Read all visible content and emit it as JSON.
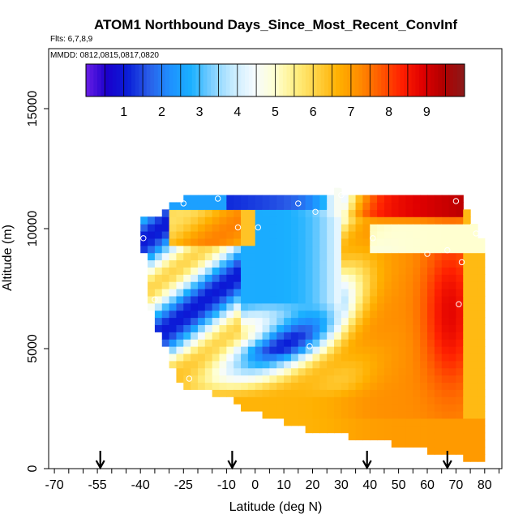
{
  "chart_data": {
    "type": "heatmap",
    "title": "ATOM1 Northbound Days_Since_Most_Recent_ConvInf",
    "subtitle_flights": "Flts: 6,7,8,9",
    "subtitle_dates": "MMDD: 0812,0815,0817,0820",
    "xlabel": "Latitude (deg N)",
    "ylabel": "Altitude (m)",
    "xlim": [
      -72,
      86
    ],
    "ylim": [
      0,
      17500
    ],
    "x_tick_labels": [
      {
        "value": -70,
        "label": "-70"
      },
      {
        "value": -55,
        "label": "-55"
      },
      {
        "value": -40,
        "label": "-40"
      },
      {
        "value": -25,
        "label": "-25"
      },
      {
        "value": -10,
        "label": "-10"
      },
      {
        "value": 0,
        "label": "0"
      },
      {
        "value": 10,
        "label": "10"
      },
      {
        "value": 20,
        "label": "20"
      },
      {
        "value": 30,
        "label": "30"
      },
      {
        "value": 40,
        "label": "40"
      },
      {
        "value": 50,
        "label": "50"
      },
      {
        "value": 60,
        "label": "60"
      },
      {
        "value": 70,
        "label": "70"
      },
      {
        "value": 80,
        "label": "80"
      }
    ],
    "y_ticks": [
      0,
      5000,
      10000,
      15000
    ],
    "y_tick_labels": [
      "0",
      "5000",
      "10000",
      "15000"
    ],
    "colorbar": {
      "range": [
        0,
        10
      ],
      "ticks": [
        1,
        2,
        3,
        4,
        5,
        6,
        7,
        8,
        9
      ],
      "tick_labels": [
        "1",
        "2",
        "3",
        "4",
        "5",
        "6",
        "7",
        "8",
        "9"
      ],
      "colors": [
        "#6a1ee6",
        "#1a00cc",
        "#0a1fd8",
        "#2a5ee8",
        "#1e90ff",
        "#1ab0ff",
        "#7fd0ff",
        "#c8ecff",
        "#f5fbff",
        "#ffffd0",
        "#ffee80",
        "#ffd040",
        "#ffb000",
        "#ff8c00",
        "#ff5a00",
        "#ff2000",
        "#e00000",
        "#b00000",
        "#8b1a1a"
      ]
    },
    "arrows_latitude": [
      -54,
      -8,
      39,
      67
    ],
    "profiles": [
      {
        "lat": -39,
        "alt_min": 6800,
        "alt_max": 10400
      },
      {
        "lat": -28,
        "alt_min": 3500,
        "alt_max": 11400
      },
      {
        "lat": -10,
        "alt_min": 3000,
        "alt_max": 11400
      },
      {
        "lat": 10,
        "alt_min": 2000,
        "alt_max": 11400
      },
      {
        "lat": 26,
        "alt_min": 1600,
        "alt_max": 11600
      },
      {
        "lat": 42,
        "alt_min": 1200,
        "alt_max": 11400
      },
      {
        "lat": 58,
        "alt_min": 800,
        "alt_max": 11400
      },
      {
        "lat": 75,
        "alt_min": 400,
        "alt_max": 10000
      }
    ],
    "sample_points": [
      {
        "lat": -39,
        "alt": 9600
      },
      {
        "lat": -35,
        "alt": 7050
      },
      {
        "lat": -25,
        "alt": 11050
      },
      {
        "lat": -23,
        "alt": 3750
      },
      {
        "lat": -13,
        "alt": 11250
      },
      {
        "lat": -6,
        "alt": 10050
      },
      {
        "lat": 1,
        "alt": 10050
      },
      {
        "lat": 15,
        "alt": 11050
      },
      {
        "lat": 19,
        "alt": 5100
      },
      {
        "lat": 21,
        "alt": 10700
      },
      {
        "lat": 30,
        "alt": 11800
      },
      {
        "lat": 30,
        "alt": 11400
      },
      {
        "lat": 41,
        "alt": 9600
      },
      {
        "lat": 60,
        "alt": 8950
      },
      {
        "lat": 67,
        "alt": 9100
      },
      {
        "lat": 70,
        "alt": 11150
      },
      {
        "lat": 71,
        "alt": 6850
      },
      {
        "lat": 72,
        "alt": 8600
      },
      {
        "lat": 77,
        "alt": 9800
      }
    ]
  }
}
